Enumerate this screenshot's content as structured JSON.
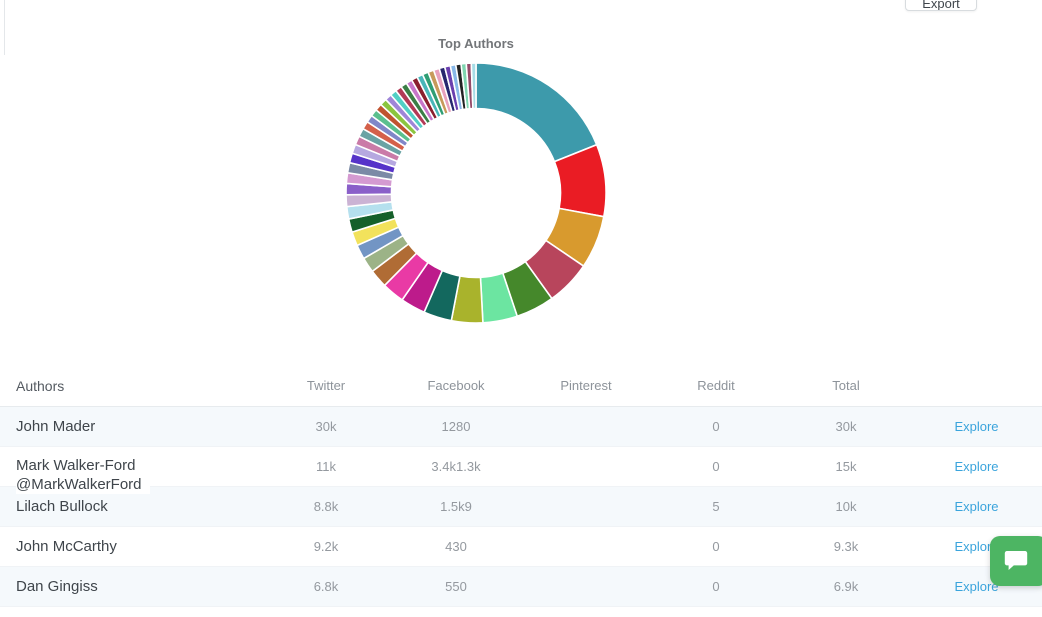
{
  "toolbar": {
    "export_label": "Export"
  },
  "chart": {
    "title": "Top Authors"
  },
  "chart_data": {
    "type": "pie",
    "subtype": "donut",
    "title": "Top Authors",
    "legend": "none",
    "value_basis": "estimated percent share of total mentions (angles read from chart)",
    "segments": [
      {
        "name": "John Mader",
        "total": "30k",
        "color": "#3d9aab",
        "pct": 19.0
      },
      {
        "name": "Mark Walker-Ford",
        "total": "15k",
        "color": "#ea1c24",
        "pct": 9.0
      },
      {
        "name": "Lilach Bullock",
        "total": "10k",
        "color": "#d89a2e",
        "pct": 6.6
      },
      {
        "name": "John McCarthy",
        "total": "9.3k",
        "color": "#b8455c",
        "pct": 5.6
      },
      {
        "name": "Dan Gingiss",
        "total": "6.9k",
        "color": "#45882b",
        "pct": 4.8
      },
      {
        "name": "",
        "color": "#6ce5a1",
        "pct": 4.3
      },
      {
        "name": "",
        "color": "#a9b32c",
        "pct": 3.9
      },
      {
        "name": "",
        "color": "#13685e",
        "pct": 3.5
      },
      {
        "name": "",
        "color": "#bd1b8b",
        "pct": 3.1
      },
      {
        "name": "",
        "color": "#e93aa5",
        "pct": 2.8
      },
      {
        "name": "",
        "color": "#b06c35",
        "pct": 2.3
      },
      {
        "name": "",
        "color": "#9cb387",
        "pct": 1.9
      },
      {
        "name": "",
        "color": "#7295c4",
        "pct": 1.8
      },
      {
        "name": "",
        "color": "#f2e25c",
        "pct": 1.75
      },
      {
        "name": "",
        "color": "#15602a",
        "pct": 1.65
      },
      {
        "name": "",
        "color": "#b5e0ee",
        "pct": 1.55
      },
      {
        "name": "",
        "color": "#cbb3d4",
        "pct": 1.45
      },
      {
        "name": "",
        "color": "#8a5fc9",
        "pct": 1.4
      },
      {
        "name": "",
        "color": "#d49ad1",
        "pct": 1.32
      },
      {
        "name": "",
        "color": "#7b8aa6",
        "pct": 1.26
      },
      {
        "name": "",
        "color": "#5633c9",
        "pct": 1.2
      },
      {
        "name": "",
        "color": "#b6a8e0",
        "pct": 1.15
      },
      {
        "name": "",
        "color": "#ca7ba8",
        "pct": 1.1
      },
      {
        "name": "",
        "color": "#6aa3a4",
        "pct": 1.05
      },
      {
        "name": "",
        "color": "#d4604a",
        "pct": 1.0
      },
      {
        "name": "",
        "color": "#8087c8",
        "pct": 0.92
      },
      {
        "name": "",
        "color": "#5bbf8e",
        "pct": 0.9
      },
      {
        "name": "",
        "color": "#c0532f",
        "pct": 0.88
      },
      {
        "name": "",
        "color": "#8bc53f",
        "pct": 0.86
      },
      {
        "name": "",
        "color": "#9f86d8",
        "pct": 0.84
      },
      {
        "name": "",
        "color": "#52cfc5",
        "pct": 0.82
      },
      {
        "name": "",
        "color": "#b23a56",
        "pct": 0.8
      },
      {
        "name": "",
        "color": "#3b7e46",
        "pct": 0.78
      },
      {
        "name": "",
        "color": "#c776c9",
        "pct": 0.76
      },
      {
        "name": "",
        "color": "#8a1f2e",
        "pct": 0.76
      },
      {
        "name": "",
        "color": "#49b6b9",
        "pct": 0.74
      },
      {
        "name": "",
        "color": "#2f9e74",
        "pct": 0.74
      },
      {
        "name": "",
        "color": "#c79a5b",
        "pct": 0.72
      },
      {
        "name": "",
        "color": "#e8a1bd",
        "pct": 0.72
      },
      {
        "name": "",
        "color": "#27276e",
        "pct": 0.7
      },
      {
        "name": "",
        "color": "#6a3fae",
        "pct": 0.7
      },
      {
        "name": "",
        "color": "#88b8e8",
        "pct": 0.68
      },
      {
        "name": "",
        "color": "#222222",
        "pct": 0.66
      },
      {
        "name": "",
        "color": "#7fd6b0",
        "pct": 0.64
      },
      {
        "name": "",
        "color": "#944a68",
        "pct": 0.62
      },
      {
        "name": "",
        "color": "#a8dce6",
        "pct": 0.58
      }
    ]
  },
  "table": {
    "headers": {
      "authors": "Authors",
      "twitter": "Twitter",
      "facebook": "Facebook",
      "pinterest": "Pinterest",
      "reddit": "Reddit",
      "total": "Total"
    },
    "rows": [
      {
        "author": "John Mader",
        "handle": "",
        "twitter": "30k",
        "facebook": "1280",
        "pinterest": "",
        "reddit": "0",
        "total": "30k"
      },
      {
        "author": "Mark Walker-Ford",
        "handle": "@MarkWalkerFord",
        "twitter": "11k",
        "facebook": "3.4k1.3k",
        "pinterest": "",
        "reddit": "0",
        "total": "15k"
      },
      {
        "author": "Lilach Bullock",
        "handle": "",
        "twitter": "8.8k",
        "facebook": "1.5k9",
        "pinterest": "",
        "reddit": "5",
        "total": "10k"
      },
      {
        "author": "John McCarthy",
        "handle": "",
        "twitter": "9.2k",
        "facebook": "430",
        "pinterest": "",
        "reddit": "0",
        "total": "9.3k"
      },
      {
        "author": "Dan Gingiss",
        "handle": "",
        "twitter": "6.8k",
        "facebook": "550",
        "pinterest": "",
        "reddit": "0",
        "total": "6.9k"
      }
    ],
    "explore_label": "Explore"
  },
  "chat_widget": {
    "color": "#4db563",
    "icon": "chat-bubble-icon"
  }
}
